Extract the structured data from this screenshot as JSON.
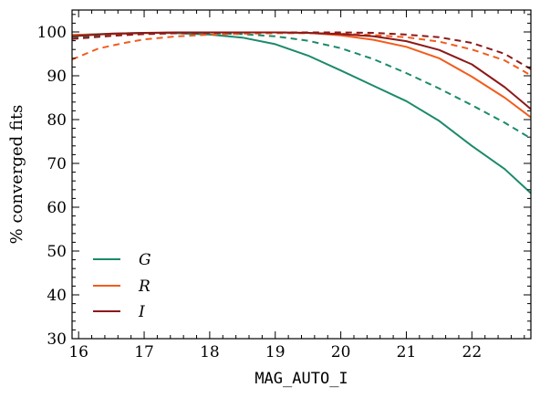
{
  "chart_data": {
    "type": "line",
    "xlabel": "MAG_AUTO_I",
    "ylabel": "% converged fits",
    "xlim": [
      15.9,
      22.9
    ],
    "ylim": [
      30,
      105
    ],
    "xticks": [
      16,
      17,
      18,
      19,
      20,
      21,
      22
    ],
    "yticks": [
      30,
      40,
      50,
      60,
      70,
      80,
      90,
      100
    ],
    "grid": false,
    "legend_position": "lower-left",
    "series": [
      {
        "name": "G",
        "color": "#1b8a6b",
        "style": "solid",
        "x": [
          15.9,
          16.5,
          17.0,
          17.5,
          18.0,
          18.5,
          19.0,
          19.5,
          20.0,
          20.5,
          21.0,
          21.5,
          22.0,
          22.5,
          22.9
        ],
        "y": [
          99.3,
          99.6,
          99.8,
          99.7,
          99.4,
          98.7,
          97.2,
          94.6,
          91.2,
          87.7,
          84.2,
          79.7,
          74.0,
          68.7,
          63.2
        ]
      },
      {
        "name": "G",
        "color": "#1b8a6b",
        "style": "dashed",
        "x": [
          15.9,
          16.5,
          17.0,
          17.5,
          18.0,
          18.5,
          19.0,
          19.5,
          20.0,
          20.5,
          21.0,
          21.5,
          22.0,
          22.5,
          22.9
        ],
        "y": [
          98.8,
          99.3,
          99.6,
          99.7,
          99.7,
          99.5,
          99.0,
          98.0,
          96.3,
          93.8,
          90.6,
          87.1,
          83.3,
          79.3,
          75.7
        ]
      },
      {
        "name": "R",
        "color": "#f25c1c",
        "style": "solid",
        "x": [
          15.9,
          16.5,
          17.0,
          17.5,
          18.0,
          18.5,
          19.0,
          19.5,
          20.0,
          20.5,
          21.0,
          21.5,
          22.0,
          22.5,
          22.9
        ],
        "y": [
          99.3,
          99.5,
          99.7,
          99.9,
          99.9,
          99.9,
          99.9,
          99.8,
          99.2,
          98.2,
          96.6,
          94.0,
          89.8,
          85.0,
          80.5
        ]
      },
      {
        "name": "R",
        "color": "#f25c1c",
        "style": "dashed",
        "x": [
          15.9,
          16.3,
          16.7,
          17.0,
          17.5,
          18.0,
          18.5,
          19.0,
          19.5,
          20.0,
          20.5,
          21.0,
          21.5,
          22.0,
          22.5,
          22.9
        ],
        "y": [
          93.7,
          96.2,
          97.5,
          98.3,
          99.0,
          99.4,
          99.6,
          99.7,
          99.7,
          99.6,
          99.3,
          98.8,
          97.8,
          96.0,
          93.5,
          90.1
        ]
      },
      {
        "name": "I",
        "color": "#8b1a1a",
        "style": "solid",
        "x": [
          15.9,
          16.5,
          17.0,
          17.5,
          18.0,
          18.5,
          19.0,
          19.5,
          20.0,
          20.5,
          21.0,
          21.5,
          22.0,
          22.5,
          22.9
        ],
        "y": [
          99.0,
          99.6,
          99.8,
          99.9,
          99.9,
          99.9,
          99.9,
          99.8,
          99.5,
          99.0,
          97.9,
          95.9,
          92.6,
          87.4,
          82.4
        ]
      },
      {
        "name": "I",
        "color": "#8b1a1a",
        "style": "dashed",
        "x": [
          15.9,
          16.5,
          17.0,
          17.5,
          18.0,
          18.5,
          19.0,
          19.5,
          20.0,
          20.5,
          21.0,
          21.5,
          22.0,
          22.5,
          22.9
        ],
        "y": [
          98.4,
          99.1,
          99.5,
          99.7,
          99.8,
          99.9,
          99.9,
          99.9,
          99.9,
          99.8,
          99.4,
          98.8,
          97.5,
          95.0,
          91.5
        ]
      }
    ],
    "legend": [
      {
        "label": "G",
        "color": "#1b8a6b"
      },
      {
        "label": "R",
        "color": "#f25c1c"
      },
      {
        "label": "I",
        "color": "#8b1a1a"
      }
    ]
  }
}
